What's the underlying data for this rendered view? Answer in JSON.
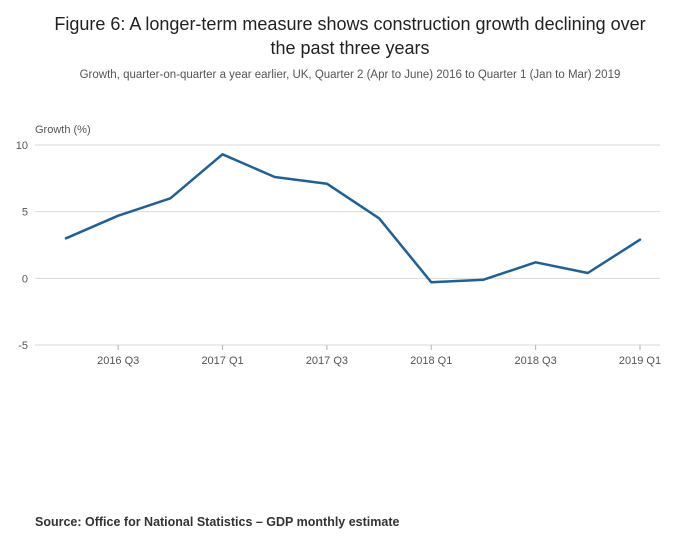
{
  "figure": {
    "title": "Figure 6: A longer-term measure shows construction growth declining over the past three years",
    "subtitle": "Growth, quarter-on-quarter a year earlier, UK, Quarter 2 (Apr to June) 2016 to Quarter 1 (Jan to Mar) 2019",
    "source": "Source: Office for National Statistics – GDP monthly estimate"
  },
  "chart_data": {
    "type": "line",
    "title": "Figure 6: A longer-term measure shows construction growth declining over the past three years",
    "ylabel": "Growth (%)",
    "xlabel": "",
    "categories": [
      "2016 Q2",
      "2016 Q3",
      "2016 Q4",
      "2017 Q1",
      "2017 Q2",
      "2017 Q3",
      "2017 Q4",
      "2018 Q1",
      "2018 Q2",
      "2018 Q3",
      "2018 Q4",
      "2019 Q1"
    ],
    "values": [
      3.0,
      4.7,
      6.0,
      9.3,
      7.6,
      7.1,
      4.5,
      -0.3,
      -0.1,
      1.2,
      0.4,
      2.9
    ],
    "ylim": [
      -5,
      10
    ],
    "yticks": [
      -5,
      0,
      5,
      10
    ],
    "x_tick_labels": [
      "2016 Q3",
      "2017 Q1",
      "2017 Q3",
      "2018 Q1",
      "2018 Q3",
      "2019 Q1"
    ],
    "x_tick_indices": [
      1,
      3,
      5,
      7,
      9,
      11
    ],
    "grid": true,
    "legend": "none",
    "line_color": "#206095",
    "grid_color": "#d9d9d9",
    "tick_color": "#b3b3b3"
  }
}
